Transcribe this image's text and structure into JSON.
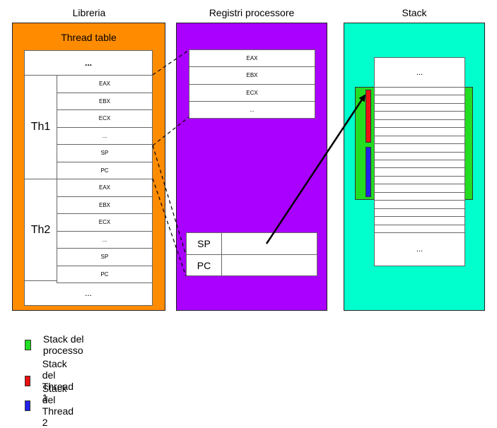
{
  "columns": {
    "libreria": "Libreria",
    "registri": "Registri processore",
    "stack": "Stack"
  },
  "thread_table": {
    "title": "Thread table",
    "top_ellipsis": "...",
    "bottom_ellipsis": "...",
    "threads": [
      {
        "name": "Th1",
        "rows": [
          "EAX",
          "EBX",
          "ECX",
          "...",
          "SP",
          "PC"
        ]
      },
      {
        "name": "Th2",
        "rows": [
          "EAX",
          "EBX",
          "ECX",
          "...",
          "SP",
          "PC"
        ]
      }
    ]
  },
  "registers_block": {
    "rows": [
      "EAX",
      "EBX",
      "ECX",
      "..."
    ]
  },
  "sp_pc_block": {
    "sp": "SP",
    "pc": "PC"
  },
  "stack_column": {
    "top_ellipsis": "...",
    "bottom_ellipsis": "..."
  },
  "legend": [
    {
      "label": "Stack del processo",
      "color": "#22dd22"
    },
    {
      "label": "Stack del Thread 1",
      "color": "#ee1111"
    },
    {
      "label": "Stack del Thread 2",
      "color": "#2222ee"
    }
  ],
  "colors": {
    "libreria_panel": "#ff8c00",
    "registri_panel": "#aa00ff",
    "stack_panel": "#00ffcc",
    "process_stack": "#22dd22",
    "thread1_stack": "#ee1111",
    "thread2_stack": "#2222ee"
  }
}
